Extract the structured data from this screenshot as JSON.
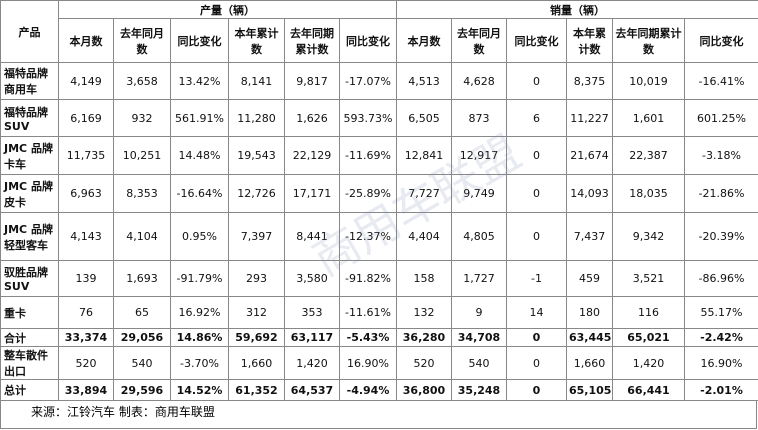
{
  "table": {
    "product_header": "产品",
    "groups": [
      "产量（辆）",
      "销量（辆）"
    ],
    "columns": [
      "本月数",
      "去年同月数",
      "同比变化",
      "本年累计数",
      "去年同期累计数",
      "同比变化",
      "本月数",
      "去年同月数",
      "同比变化",
      "本年累计数",
      "去年同期累计数",
      "同比变化"
    ],
    "rows": [
      {
        "product": "福特品牌商用车",
        "cells": [
          "4,149",
          "3,658",
          "13.42%",
          "8,141",
          "9,817",
          "-17.07%",
          "4,513",
          "4,628",
          "0",
          "8,375",
          "10,019",
          "-16.41%"
        ]
      },
      {
        "product": "福特品牌SUV",
        "cells": [
          "6,169",
          "932",
          "561.91%",
          "11,280",
          "1,626",
          "593.73%",
          "6,505",
          "873",
          "6",
          "11,227",
          "1,601",
          "601.25%"
        ]
      },
      {
        "product": "JMC 品牌卡车",
        "cells": [
          "11,735",
          "10,251",
          "14.48%",
          "19,543",
          "22,129",
          "-11.69%",
          "12,841",
          "12,917",
          "0",
          "21,674",
          "22,387",
          "-3.18%"
        ]
      },
      {
        "product": "JMC 品牌皮卡",
        "cells": [
          "6,963",
          "8,353",
          "-16.64%",
          "12,726",
          "17,171",
          "-25.89%",
          "7,727",
          "9,749",
          "0",
          "14,093",
          "18,035",
          "-21.86%"
        ]
      },
      {
        "product": "JMC 品牌轻型客车",
        "cells": [
          "4,143",
          "4,104",
          "0.95%",
          "7,397",
          "8,441",
          "-12.37%",
          "4,404",
          "4,805",
          "0",
          "7,437",
          "9,342",
          "-20.39%"
        ]
      },
      {
        "product": "驭胜品牌SUV",
        "cells": [
          "139",
          "1,693",
          "-91.79%",
          "293",
          "3,580",
          "-91.82%",
          "158",
          "1,727",
          "-1",
          "459",
          "3,521",
          "-86.96%"
        ]
      },
      {
        "product": "重卡",
        "cells": [
          "76",
          "65",
          "16.92%",
          "312",
          "353",
          "-11.61%",
          "132",
          "9",
          "14",
          "180",
          "116",
          "55.17%"
        ]
      },
      {
        "product": "合计",
        "cells": [
          "33,374",
          "29,056",
          "14.86%",
          "59,692",
          "63,117",
          "-5.43%",
          "36,280",
          "34,708",
          "0",
          "63,445",
          "65,021",
          "-2.42%"
        ]
      },
      {
        "product": "整车散件出口",
        "cells": [
          "520",
          "540",
          "-3.70%",
          "1,660",
          "1,420",
          "16.90%",
          "520",
          "540",
          "0",
          "1,660",
          "1,420",
          "16.90%"
        ]
      },
      {
        "product": "总计",
        "cells": [
          "33,894",
          "29,596",
          "14.52%",
          "61,352",
          "64,537",
          "-4.94%",
          "36,800",
          "35,248",
          "0",
          "65,105",
          "66,441",
          "-2.01%"
        ]
      }
    ]
  },
  "footer": "来源：江铃汽车  制表：商用车联盟",
  "watermark": "商用车联盟"
}
